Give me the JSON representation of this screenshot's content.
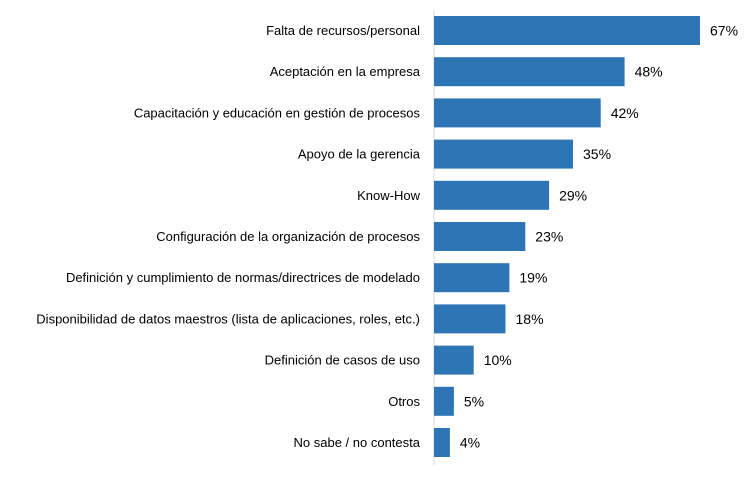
{
  "chart_data": {
    "type": "bar",
    "orientation": "horizontal",
    "categories": [
      "Falta de recursos/personal",
      "Aceptación en la empresa",
      "Capacitación y educación en gestión de procesos",
      "Apoyo de la gerencia",
      "Know-How",
      "Configuración de la organización de procesos",
      "Definición y cumplimiento de normas/directrices de modelado",
      "Disponibilidad de datos maestros (lista de aplicaciones, roles, etc.)",
      "Definición de casos de uso",
      "Otros",
      "No sabe / no contesta"
    ],
    "values": [
      67,
      48,
      42,
      35,
      29,
      23,
      19,
      18,
      10,
      5,
      4
    ],
    "value_labels": [
      "67%",
      "48%",
      "42%",
      "35%",
      "29%",
      "23%",
      "19%",
      "18%",
      "10%",
      "5%",
      "4%"
    ],
    "xlim": [
      0,
      67
    ],
    "bar_color": "#2e75b6",
    "axis_line_color": "#d9d9d9",
    "title": "",
    "xlabel": "",
    "ylabel": "",
    "grid": false,
    "legend": false
  }
}
